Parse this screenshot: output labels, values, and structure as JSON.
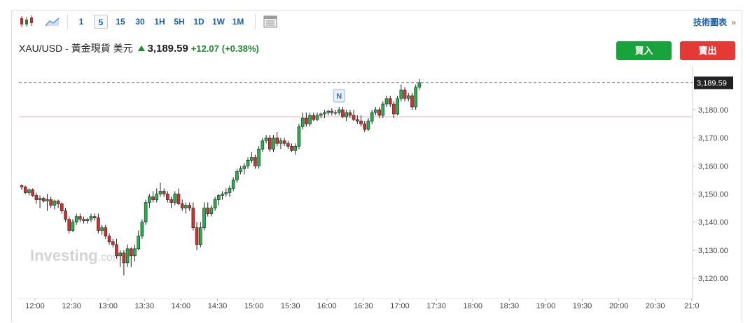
{
  "toolbar": {
    "intervals": [
      "1",
      "5",
      "15",
      "30",
      "1H",
      "5H",
      "1D",
      "1W",
      "1M"
    ],
    "active_interval": "5",
    "tech_link": "技術圖表",
    "tech_link_arrow": "»",
    "icons": [
      "candlestick-icon",
      "area-chart-icon",
      "table-icon"
    ]
  },
  "quote": {
    "symbol": "XAU/USD - 黃金現貨 美元",
    "price": "3,189.59",
    "change": "+12.07",
    "change_pct": "(+0.38%)"
  },
  "buttons": {
    "buy": "買入",
    "sell": "賣出"
  },
  "watermark": {
    "brand": "Investing",
    "suffix": ".com"
  },
  "colors": {
    "up": "#22b14c",
    "down": "#d32f2f",
    "accent": "#1a5fa8"
  },
  "chart_data": {
    "type": "candlestick",
    "interval_minutes": 5,
    "ylim": [
      3114,
      3195
    ],
    "yticks": [
      3120,
      3130,
      3140,
      3150,
      3160,
      3170,
      3180
    ],
    "ytick_labels": [
      "3,120.00",
      "3,130.00",
      "3,140.00",
      "3,150.00",
      "3,160.00",
      "3,170.00",
      "3,180.00"
    ],
    "xtick_labels": [
      "12:00",
      "12:30",
      "13:00",
      "13:30",
      "14:00",
      "14:30",
      "15:00",
      "15:30",
      "16:00",
      "16:30",
      "17:00",
      "17:30",
      "18:00",
      "18:30",
      "19:00",
      "19:30",
      "20:00",
      "20:30",
      "21:0"
    ],
    "last_price": 3189.59,
    "last_price_label": "3,189.59",
    "reference_line": 3177.5,
    "event_marker": {
      "label": "N",
      "time": "19:10"
    },
    "candles": [
      [
        3153,
        3153.5,
        3151.5,
        3152.5
      ],
      [
        3152.5,
        3153,
        3150,
        3150.5
      ],
      [
        3150.5,
        3152,
        3149.5,
        3151.5
      ],
      [
        3151.5,
        3152,
        3149,
        3149.5
      ],
      [
        3149.5,
        3150.5,
        3146.5,
        3148
      ],
      [
        3148,
        3149.5,
        3145,
        3148.5
      ],
      [
        3148.5,
        3149,
        3147,
        3147.5
      ],
      [
        3147.5,
        3150,
        3144,
        3148
      ],
      [
        3148,
        3149,
        3145,
        3146
      ],
      [
        3146,
        3148,
        3144.5,
        3147.5
      ],
      [
        3147.5,
        3148,
        3145,
        3146.5
      ],
      [
        3146.5,
        3147,
        3143,
        3144
      ],
      [
        3144,
        3145,
        3140,
        3141
      ],
      [
        3141,
        3142,
        3136,
        3137
      ],
      [
        3137,
        3141,
        3136.5,
        3140
      ],
      [
        3140,
        3143,
        3139,
        3142
      ],
      [
        3142,
        3143,
        3140,
        3141
      ],
      [
        3141,
        3142,
        3139.5,
        3140.5
      ],
      [
        3140.5,
        3141.5,
        3139.5,
        3141
      ],
      [
        3141,
        3143,
        3140,
        3142
      ],
      [
        3142,
        3143,
        3140.5,
        3141.5
      ],
      [
        3141.5,
        3143,
        3136,
        3137
      ],
      [
        3137,
        3139,
        3135.5,
        3138
      ],
      [
        3138,
        3139,
        3134,
        3135
      ],
      [
        3135,
        3136,
        3132,
        3133
      ],
      [
        3133,
        3134,
        3131,
        3132
      ],
      [
        3132,
        3134,
        3127,
        3128
      ],
      [
        3128,
        3130,
        3124,
        3129
      ],
      [
        3129,
        3130,
        3121,
        3125.5
      ],
      [
        3125.5,
        3132,
        3124,
        3130.5
      ],
      [
        3130.5,
        3131,
        3124,
        3128
      ],
      [
        3128,
        3132,
        3126,
        3130.5
      ],
      [
        3130.5,
        3137,
        3130,
        3135
      ],
      [
        3135,
        3141,
        3134,
        3140
      ],
      [
        3140,
        3148,
        3139,
        3147
      ],
      [
        3147,
        3150,
        3145,
        3149
      ],
      [
        3149,
        3151,
        3147,
        3148
      ],
      [
        3148,
        3152,
        3147,
        3150
      ],
      [
        3150,
        3154,
        3149,
        3151
      ],
      [
        3151,
        3152,
        3149,
        3150
      ],
      [
        3150,
        3151,
        3147,
        3148
      ],
      [
        3148,
        3149,
        3145,
        3147
      ],
      [
        3147,
        3151,
        3146,
        3150
      ],
      [
        3150,
        3152,
        3146,
        3146.5
      ],
      [
        3146.5,
        3148,
        3144,
        3145
      ],
      [
        3145,
        3147,
        3143,
        3146
      ],
      [
        3146,
        3147,
        3144,
        3145
      ],
      [
        3145,
        3147,
        3137,
        3138
      ],
      [
        3138,
        3140,
        3130,
        3132
      ],
      [
        3132,
        3140,
        3131,
        3138
      ],
      [
        3138,
        3147,
        3137,
        3145
      ],
      [
        3145,
        3147,
        3142,
        3143
      ],
      [
        3143,
        3146,
        3142,
        3145
      ],
      [
        3145,
        3149,
        3144,
        3148
      ],
      [
        3148,
        3150,
        3146,
        3149.5
      ],
      [
        3149.5,
        3151,
        3148,
        3150
      ],
      [
        3150,
        3152,
        3149,
        3150.5
      ],
      [
        3150.5,
        3153,
        3149,
        3152
      ],
      [
        3152,
        3156,
        3151,
        3155
      ],
      [
        3155,
        3159,
        3154,
        3158
      ],
      [
        3158,
        3160,
        3157,
        3159
      ],
      [
        3159,
        3161,
        3157,
        3160
      ],
      [
        3160,
        3163,
        3159,
        3162
      ],
      [
        3162,
        3165,
        3161,
        3163
      ],
      [
        3163,
        3164,
        3159,
        3160
      ],
      [
        3160,
        3167,
        3159,
        3166
      ],
      [
        3166,
        3170,
        3165,
        3169
      ],
      [
        3169,
        3171,
        3168,
        3170
      ],
      [
        3170,
        3171,
        3165,
        3166
      ],
      [
        3166,
        3171,
        3165,
        3170
      ],
      [
        3170,
        3172,
        3167,
        3168
      ],
      [
        3168,
        3170,
        3166,
        3169
      ],
      [
        3169,
        3170,
        3167,
        3168
      ],
      [
        3168,
        3169,
        3166,
        3167
      ],
      [
        3167,
        3168,
        3165,
        3165.5
      ],
      [
        3165.5,
        3168,
        3164,
        3167
      ],
      [
        3167,
        3175,
        3166,
        3174
      ],
      [
        3174,
        3179,
        3173,
        3177
      ],
      [
        3177,
        3179,
        3174,
        3175
      ],
      [
        3175,
        3179,
        3174,
        3178
      ],
      [
        3178,
        3179,
        3176,
        3176.5
      ],
      [
        3176.5,
        3179,
        3176,
        3178
      ],
      [
        3178,
        3179,
        3177,
        3178.5
      ],
      [
        3178.5,
        3180,
        3177,
        3179
      ],
      [
        3179,
        3180,
        3178,
        3179.5
      ],
      [
        3179.5,
        3180.5,
        3178,
        3179
      ],
      [
        3179,
        3180,
        3178,
        3179
      ],
      [
        3179,
        3181,
        3178,
        3180
      ],
      [
        3180,
        3181,
        3177,
        3177.5
      ],
      [
        3177.5,
        3180,
        3176,
        3179
      ],
      [
        3179,
        3180,
        3177,
        3178
      ],
      [
        3178,
        3180,
        3176,
        3176.5
      ],
      [
        3176.5,
        3178,
        3175,
        3176
      ],
      [
        3176,
        3178,
        3174,
        3175
      ],
      [
        3175,
        3176,
        3172,
        3173
      ],
      [
        3173,
        3177,
        3172.5,
        3176
      ],
      [
        3176,
        3180,
        3175,
        3179
      ],
      [
        3179,
        3181,
        3178,
        3180
      ],
      [
        3180,
        3181,
        3177,
        3178
      ],
      [
        3178,
        3183,
        3177,
        3182
      ],
      [
        3182,
        3185,
        3181,
        3184
      ],
      [
        3184,
        3185,
        3181,
        3182
      ],
      [
        3182,
        3183,
        3177,
        3178.5
      ],
      [
        3178.5,
        3185,
        3178,
        3184
      ],
      [
        3184,
        3189,
        3183,
        3187
      ],
      [
        3187,
        3188,
        3183,
        3184
      ],
      [
        3184,
        3186,
        3183,
        3185
      ],
      [
        3185,
        3186,
        3180,
        3181
      ],
      [
        3181,
        3189,
        3180,
        3188
      ],
      [
        3188,
        3191,
        3187,
        3189.59
      ]
    ]
  }
}
